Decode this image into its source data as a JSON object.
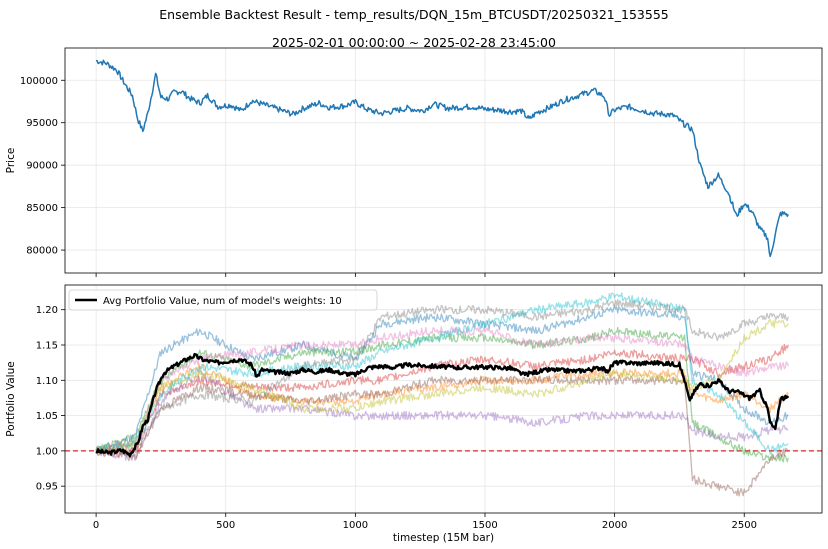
{
  "figure": {
    "title": "Ensemble Backtest Result - temp_results/DQN_15m_BTCUSDT/20250321_153555",
    "subtitle": "2025-02-01 00:00:00 ~ 2025-02-28 23:45:00"
  },
  "colors": {
    "price": "#1f77b4",
    "avg": "#000000",
    "baseline": "#d62728",
    "models": [
      "#1f77b4",
      "#ff7f0e",
      "#2ca02c",
      "#d62728",
      "#9467bd",
      "#8c564b",
      "#e377c2",
      "#7f7f7f",
      "#bcbd22",
      "#17becf"
    ]
  },
  "chart_data": [
    {
      "type": "line",
      "ylabel": "Price",
      "xlim": [
        -120,
        2800
      ],
      "ylim": [
        77300,
        103800
      ],
      "xticks": [
        0,
        500,
        1000,
        1500,
        2000,
        2500
      ],
      "yticks": [
        80000,
        85000,
        90000,
        95000,
        100000
      ],
      "ytick_labels": [
        "80000",
        "85000",
        "90000",
        "95000",
        "100000"
      ],
      "grid": true,
      "series": [
        {
          "x": [
            0,
            40,
            80,
            110,
            140,
            160,
            180,
            200,
            230,
            250,
            280,
            300,
            330,
            360,
            400,
            430,
            470,
            520,
            560,
            600,
            650,
            700,
            760,
            800,
            860,
            900,
            960,
            1000,
            1050,
            1100,
            1150,
            1200,
            1260,
            1300,
            1360,
            1400,
            1450,
            1500,
            1550,
            1600,
            1640,
            1670,
            1700,
            1750,
            1800,
            1860,
            1920,
            1960,
            1980,
            2000,
            2050,
            2100,
            2150,
            2200,
            2230,
            2260,
            2300,
            2330,
            2360,
            2400,
            2440,
            2470,
            2500,
            2530,
            2560,
            2590,
            2600,
            2620,
            2640,
            2670
          ],
          "y": [
            102300,
            102000,
            101200,
            99600,
            98200,
            95500,
            94000,
            96200,
            100700,
            98000,
            97800,
            98600,
            98700,
            97900,
            97300,
            98200,
            96900,
            97100,
            96400,
            97600,
            97100,
            96600,
            96000,
            96700,
            97300,
            96800,
            97000,
            97400,
            96500,
            96100,
            96400,
            96700,
            96400,
            97200,
            96700,
            96800,
            96900,
            96600,
            96500,
            96300,
            96400,
            95400,
            96200,
            96800,
            97600,
            98200,
            98800,
            98100,
            95900,
            96500,
            96900,
            96500,
            96100,
            96000,
            95800,
            95000,
            94200,
            90000,
            87500,
            88800,
            86700,
            84000,
            85500,
            84500,
            82500,
            81500,
            79000,
            82000,
            84300,
            84200
          ]
        }
      ]
    },
    {
      "type": "line",
      "xlabel": "timestep (15M bar)",
      "ylabel": "Portfolio Value",
      "xlim": [
        -120,
        2800
      ],
      "ylim": [
        0.912,
        1.235
      ],
      "xticks": [
        0,
        500,
        1000,
        1500,
        2000,
        2500
      ],
      "yticks": [
        0.95,
        1.0,
        1.05,
        1.1,
        1.15,
        1.2
      ],
      "ytick_labels": [
        "0.95",
        "1.00",
        "1.05",
        "1.10",
        "1.15",
        "1.20"
      ],
      "grid": true,
      "legend": {
        "label": "Avg Portfolio Value, num of model's weights: 10",
        "position": "upper-left"
      },
      "baseline": 1.0,
      "avg": {
        "name": "Avg Portfolio Value, num of model's weights: 10",
        "x": [
          0,
          50,
          100,
          130,
          160,
          180,
          200,
          230,
          260,
          300,
          350,
          380,
          420,
          470,
          520,
          560,
          600,
          620,
          640,
          680,
          750,
          800,
          850,
          900,
          950,
          1000,
          1050,
          1100,
          1150,
          1200,
          1300,
          1400,
          1500,
          1600,
          1650,
          1700,
          1750,
          1800,
          1850,
          1900,
          1950,
          1970,
          2000,
          2050,
          2100,
          2150,
          2200,
          2250,
          2270,
          2290,
          2300,
          2330,
          2360,
          2400,
          2440,
          2480,
          2520,
          2560,
          2590,
          2600,
          2620,
          2640,
          2670
        ],
        "y": [
          1.0,
          0.997,
          1.001,
          0.995,
          1.01,
          1.035,
          1.045,
          1.085,
          1.11,
          1.12,
          1.13,
          1.135,
          1.128,
          1.125,
          1.128,
          1.13,
          1.122,
          1.105,
          1.115,
          1.112,
          1.11,
          1.115,
          1.112,
          1.115,
          1.11,
          1.108,
          1.118,
          1.12,
          1.118,
          1.122,
          1.12,
          1.118,
          1.119,
          1.117,
          1.108,
          1.112,
          1.115,
          1.114,
          1.113,
          1.115,
          1.118,
          1.112,
          1.125,
          1.125,
          1.124,
          1.125,
          1.124,
          1.122,
          1.1,
          1.07,
          1.08,
          1.095,
          1.092,
          1.1,
          1.085,
          1.083,
          1.075,
          1.085,
          1.06,
          1.04,
          1.03,
          1.075,
          1.075
        ]
      },
      "models": [
        {
          "x": [
            0,
            150,
            250,
            400,
            600,
            800,
            1000,
            1100,
            1300,
            1500,
            1700,
            1900,
            2000,
            2270,
            2300,
            2400,
            2500,
            2600,
            2670
          ],
          "y": [
            1.0,
            1.02,
            1.14,
            1.17,
            1.13,
            1.15,
            1.13,
            1.18,
            1.19,
            1.18,
            1.17,
            1.19,
            1.2,
            1.19,
            1.11,
            1.1,
            1.06,
            1.04,
            1.05
          ]
        },
        {
          "x": [
            0,
            150,
            250,
            400,
            600,
            800,
            1000,
            1100,
            1300,
            1500,
            1700,
            1900,
            2000,
            2270,
            2300,
            2400,
            2500,
            2600,
            2670
          ],
          "y": [
            1.0,
            1.01,
            1.09,
            1.12,
            1.08,
            1.07,
            1.07,
            1.08,
            1.09,
            1.1,
            1.1,
            1.11,
            1.11,
            1.11,
            1.08,
            1.07,
            1.08,
            1.06,
            1.08
          ]
        },
        {
          "x": [
            0,
            150,
            250,
            400,
            600,
            800,
            1000,
            1100,
            1300,
            1500,
            1700,
            1900,
            2000,
            2270,
            2300,
            2400,
            2500,
            2600,
            2670
          ],
          "y": [
            1.0,
            1.02,
            1.1,
            1.14,
            1.12,
            1.14,
            1.14,
            1.15,
            1.16,
            1.16,
            1.15,
            1.16,
            1.17,
            1.16,
            1.04,
            1.02,
            1.0,
            0.99,
            0.99
          ]
        },
        {
          "x": [
            0,
            150,
            250,
            400,
            600,
            800,
            1000,
            1100,
            1300,
            1500,
            1700,
            1900,
            2000,
            2270,
            2300,
            2400,
            2500,
            2600,
            2670
          ],
          "y": [
            1.0,
            1.0,
            1.08,
            1.1,
            1.09,
            1.09,
            1.1,
            1.1,
            1.12,
            1.13,
            1.12,
            1.13,
            1.14,
            1.13,
            1.13,
            1.11,
            1.12,
            1.13,
            1.15
          ]
        },
        {
          "x": [
            0,
            150,
            250,
            400,
            600,
            800,
            1000,
            1100,
            1300,
            1500,
            1700,
            1900,
            2000,
            2270,
            2300,
            2400,
            2500,
            2600,
            2670
          ],
          "y": [
            1.0,
            0.99,
            1.07,
            1.11,
            1.06,
            1.06,
            1.05,
            1.05,
            1.05,
            1.05,
            1.04,
            1.05,
            1.05,
            1.05,
            1.03,
            1.02,
            1.02,
            1.03,
            1.03
          ]
        },
        {
          "x": [
            0,
            150,
            250,
            400,
            600,
            800,
            1000,
            1100,
            1300,
            1500,
            1700,
            1900,
            2000,
            2270,
            2300,
            2400,
            2500,
            2600,
            2670
          ],
          "y": [
            1.0,
            0.99,
            1.06,
            1.09,
            1.08,
            1.07,
            1.08,
            1.08,
            1.1,
            1.1,
            1.1,
            1.1,
            1.1,
            1.1,
            0.96,
            0.95,
            0.94,
            0.99,
            1.0
          ]
        },
        {
          "x": [
            0,
            150,
            250,
            400,
            600,
            800,
            1000,
            1100,
            1300,
            1500,
            1700,
            1900,
            2000,
            2270,
            2300,
            2400,
            2500,
            2600,
            2670
          ],
          "y": [
            1.0,
            1.01,
            1.1,
            1.13,
            1.14,
            1.15,
            1.15,
            1.16,
            1.17,
            1.17,
            1.15,
            1.16,
            1.16,
            1.15,
            1.13,
            1.12,
            1.11,
            1.12,
            1.12
          ]
        },
        {
          "x": [
            0,
            150,
            250,
            400,
            600,
            800,
            1000,
            1100,
            1300,
            1500,
            1700,
            1900,
            2000,
            2270,
            2300,
            2400,
            2500,
            2600,
            2670
          ],
          "y": [
            1.0,
            1.0,
            1.06,
            1.08,
            1.07,
            1.12,
            1.13,
            1.19,
            1.2,
            1.2,
            1.19,
            1.2,
            1.21,
            1.2,
            1.17,
            1.16,
            1.18,
            1.19,
            1.19
          ]
        },
        {
          "x": [
            0,
            150,
            250,
            400,
            600,
            800,
            1000,
            1100,
            1300,
            1500,
            1700,
            1900,
            2000,
            2270,
            2300,
            2400,
            2500,
            2600,
            2670
          ],
          "y": [
            1.0,
            1.01,
            1.09,
            1.11,
            1.09,
            1.06,
            1.06,
            1.07,
            1.08,
            1.09,
            1.08,
            1.1,
            1.11,
            1.1,
            1.09,
            1.1,
            1.16,
            1.18,
            1.18
          ]
        },
        {
          "x": [
            0,
            150,
            250,
            400,
            600,
            800,
            1000,
            1100,
            1300,
            1500,
            1700,
            1900,
            2000,
            2270,
            2300,
            2400,
            2500,
            2600,
            2670
          ],
          "y": [
            1.0,
            1.01,
            1.08,
            1.12,
            1.11,
            1.12,
            1.12,
            1.14,
            1.16,
            1.18,
            1.2,
            1.21,
            1.22,
            1.2,
            1.1,
            1.08,
            1.04,
            1.0,
            1.01
          ]
        }
      ]
    }
  ]
}
